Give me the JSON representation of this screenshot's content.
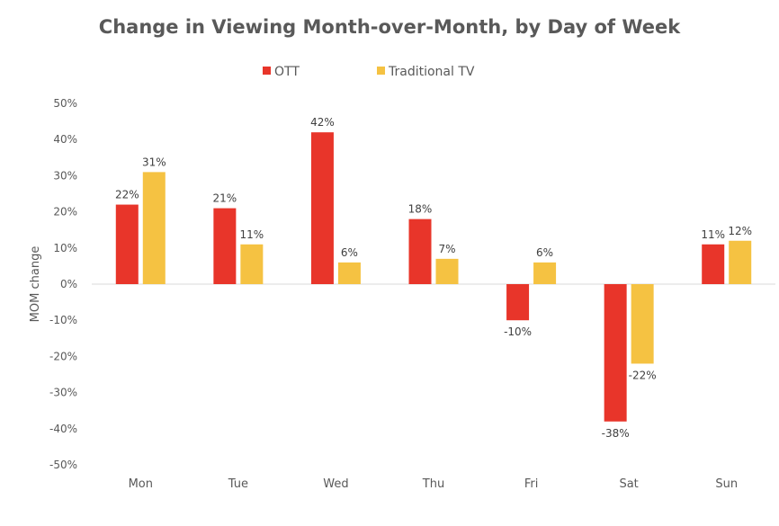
{
  "chart_data": {
    "type": "bar",
    "title": "Change in Viewing Month-over-Month, by Day of Week",
    "xlabel": "",
    "ylabel": "MOM change",
    "ylim": [
      -50,
      50
    ],
    "yticks": [
      "50%",
      "40%",
      "30%",
      "20%",
      "10%",
      "0%",
      "-10%",
      "-20%",
      "-30%",
      "-40%",
      "-50%"
    ],
    "grid": false,
    "legend_position": "top",
    "categories": [
      "Mon",
      "Tue",
      "Wed",
      "Thu",
      "Fri",
      "Sat",
      "Sun"
    ],
    "series": [
      {
        "name": "OTT",
        "color": "#E8352A",
        "values": [
          22,
          21,
          42,
          18,
          -10,
          -38,
          11
        ],
        "labels": [
          "22%",
          "21%",
          "42%",
          "18%",
          "-10%",
          "-38%",
          "11%"
        ]
      },
      {
        "name": "Traditional TV",
        "color": "#F5C242",
        "values": [
          31,
          11,
          6,
          7,
          6,
          -22,
          12
        ],
        "labels": [
          "31%",
          "11%",
          "6%",
          "7%",
          "6%",
          "-22%",
          "12%"
        ]
      }
    ]
  }
}
